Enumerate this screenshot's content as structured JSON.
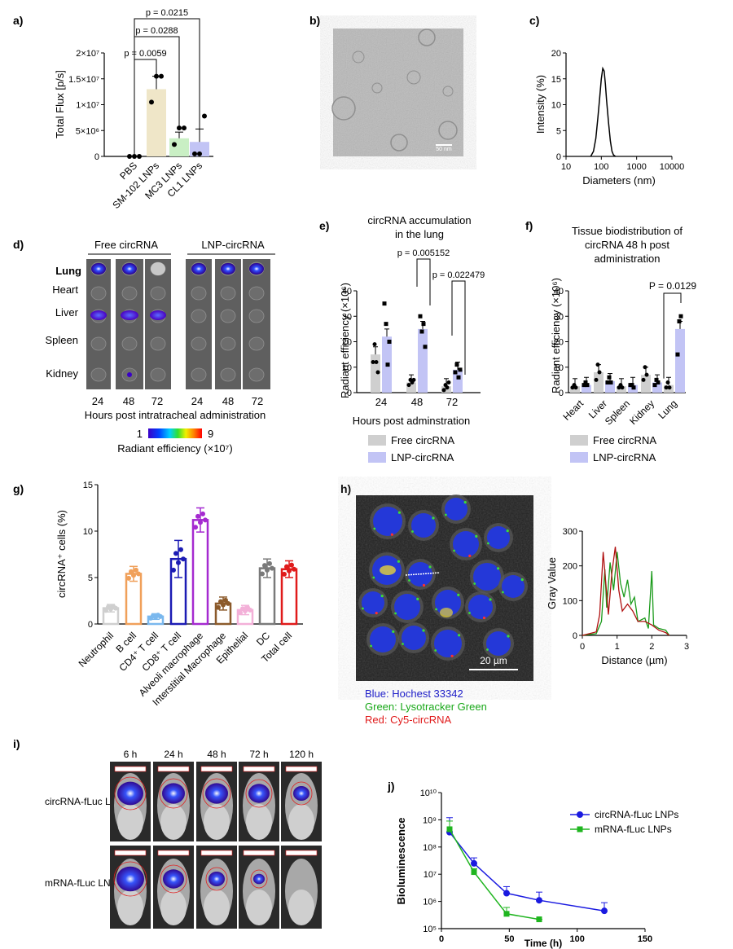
{
  "panel_letters": {
    "a": "a)",
    "b": "b)",
    "c": "c)",
    "d": "d)",
    "e": "e)",
    "f": "f)",
    "g": "g)",
    "h": "h)",
    "i": "i)",
    "j": "j)"
  },
  "colors": {
    "gray": "#cfcfcf",
    "lav": "#c2c4f5",
    "beige": "#efe6c8",
    "green_bar": "#c9efc4",
    "dark_gray": "#7a7a7a",
    "orange": "#f0a05a",
    "lightblue": "#7ab8ee",
    "blue": "#1c1cb4",
    "purple": "#a52ad0",
    "brown": "#8b5a2b",
    "pink": "#f3b0d8",
    "red": "#e01b1b",
    "line_blue": "#1a1ae0",
    "line_green": "#1fb51f"
  },
  "panel_b": {
    "scale_label": "50 nm"
  },
  "panel_d": {
    "group_free": "Free circRNA",
    "group_lnp": "LNP-circRNA",
    "organs": [
      "Lung",
      "Heart",
      "Liver",
      "Spleen",
      "Kidney"
    ],
    "timepoints_free": [
      "24",
      "48",
      "72"
    ],
    "timepoints_lnp": [
      "24",
      "48",
      "72"
    ],
    "xlabel": "Hours post intratracheal administration",
    "colorbar_min": "1",
    "colorbar_max": "9",
    "colorbar_label": "Radiant efficiency (×10⁷)"
  },
  "panel_h": {
    "scale_label": "20 µm",
    "legend": [
      "Blue: Hochest 33342",
      "Green: Lysotracker Green",
      "Red: Cy5-circRNA"
    ]
  },
  "panel_i": {
    "timepoints": [
      "6 h",
      "24 h",
      "48 h",
      "72 h",
      "120 h"
    ],
    "row1": "circRNA-fLuc LNPs",
    "row2": "mRNA-fLuc LNPs"
  },
  "chart_data": [
    {
      "panel": "a",
      "type": "bar",
      "ylabel": "Total Flux [p/s]",
      "categories": [
        "PBS",
        "SM-102 LNPs",
        "MC3 LNPs",
        "CL1 LNPs"
      ],
      "values": [
        0.0,
        1.3,
        0.35,
        0.28
      ],
      "errors": [
        0.0,
        0.25,
        0.12,
        0.25
      ],
      "ylim": [
        0,
        2.0
      ],
      "yticks": [
        "0",
        "5×10⁶",
        "1×10⁷",
        "1.5×10⁷",
        "2×10⁷"
      ],
      "pvalues": [
        "p = 0.0059",
        "p = 0.0288",
        "p = 0.0215"
      ]
    },
    {
      "panel": "c",
      "type": "line",
      "ylabel": "Intensity (%)",
      "xlabel": "Diameters (nm)",
      "xticks": [
        "10",
        "100",
        "1000",
        "10000"
      ],
      "yticks": [
        "0",
        "5",
        "10",
        "15",
        "20"
      ],
      "x": [
        50,
        60,
        70,
        80,
        90,
        100,
        110,
        120,
        130,
        140,
        160,
        180,
        200,
        220,
        250
      ],
      "y": [
        0,
        1.0,
        3.5,
        7.5,
        11.5,
        15,
        17,
        16.5,
        14,
        11,
        6.5,
        3.0,
        1.0,
        0.3,
        0
      ]
    },
    {
      "panel": "e",
      "type": "bar",
      "title": "circRNA accumulation\nin the lung",
      "ylabel": "Radiant efficiency (×10⁶)",
      "xlabel": "Hours post adminstration",
      "categories": [
        "24",
        "48",
        "72"
      ],
      "series": [
        {
          "name": "Free circRNA",
          "values": [
            15,
            4,
            2.5
          ]
        },
        {
          "name": "LNP-circRNA",
          "values": [
            22,
            25,
            9
          ]
        }
      ],
      "ylim": [
        0,
        40
      ],
      "yticks": [
        "0",
        "10",
        "20",
        "30",
        "40"
      ],
      "pvalues": [
        "p = 0.005152",
        "p = 0.022479"
      ]
    },
    {
      "panel": "f",
      "type": "bar",
      "title": "Tissue biodistribution of\ncircRNA 48 h post\nadministration",
      "ylabel": "Radiant efficiency (×10⁶)",
      "categories": [
        "Heart",
        "Liver",
        "Spleen",
        "Kidney",
        "Lung"
      ],
      "series": [
        {
          "name": "Free circRNA",
          "values": [
            2.5,
            8,
            2.5,
            7,
            3
          ]
        },
        {
          "name": "LNP-circRNA",
          "values": [
            3,
            4.5,
            3,
            4,
            25
          ]
        }
      ],
      "ylim": [
        0,
        40
      ],
      "yticks": [
        "0",
        "10",
        "20",
        "30",
        "40"
      ],
      "pvalues": [
        "P = 0.0129"
      ]
    },
    {
      "panel": "g",
      "type": "bar",
      "ylabel": "circRNA⁺ cells (%)",
      "categories": [
        "Neutrophil",
        "B cell",
        "CD4⁺ T cell",
        "CD8⁺ T cell",
        "Alveoli macrophage",
        "Interstitial Macrophage",
        "Epithelial",
        "DC",
        "Total cell"
      ],
      "values": [
        1.7,
        5.4,
        0.8,
        7.0,
        11.2,
        2.2,
        1.5,
        6.0,
        5.9
      ],
      "errors": [
        0.4,
        0.8,
        0.3,
        2.0,
        1.3,
        0.7,
        0.5,
        1.0,
        0.9
      ],
      "ylim": [
        0,
        15
      ],
      "yticks": [
        "0",
        "5",
        "10",
        "15"
      ]
    },
    {
      "panel": "h",
      "type": "line",
      "ylabel": "Gray Value",
      "xlabel": "Distance (µm)",
      "xticks": [
        "0",
        "1",
        "2",
        "3"
      ],
      "yticks": [
        "0",
        "100",
        "200",
        "300"
      ],
      "ylim": [
        0,
        300
      ],
      "xlim": [
        0,
        3
      ]
    },
    {
      "panel": "j",
      "type": "line",
      "ylabel": "Bioluminescence",
      "xlabel": "Time (h)",
      "yticks": [
        "10⁵",
        "10⁶",
        "10⁷",
        "10⁸",
        "10⁹",
        "10¹⁰"
      ],
      "xticks": [
        "0",
        "50",
        "100",
        "150"
      ],
      "series": [
        {
          "name": "circRNA-fLuc LNPs",
          "x": [
            6,
            24,
            48,
            72,
            120
          ],
          "y": [
            350000000.0,
            25000000.0,
            2000000.0,
            1100000.0,
            450000.0
          ]
        },
        {
          "name": "mRNA-fLuc LNPs",
          "x": [
            6,
            24,
            48,
            72
          ],
          "y": [
            450000000.0,
            12000000.0,
            350000.0,
            220000.0
          ]
        }
      ]
    }
  ]
}
